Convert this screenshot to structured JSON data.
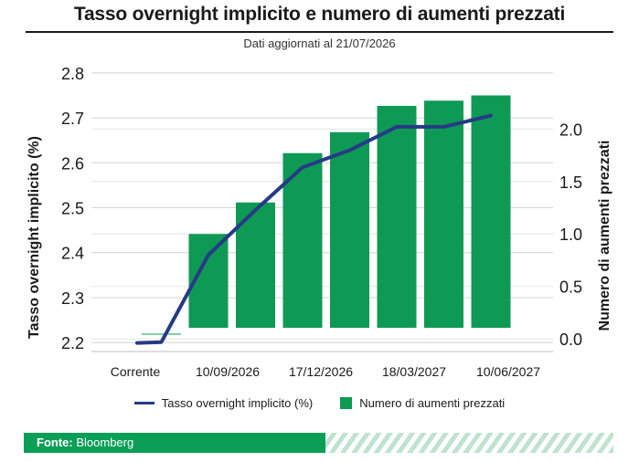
{
  "header": {
    "title": "Tasso overnight implicito e numero di aumenti prezzati",
    "subtitle": "Dati aggiornati al 21/07/2026"
  },
  "legend": {
    "line_label": "Tasso overnight implicito (%)",
    "bar_label": "Numero di aumenti prezzati"
  },
  "footer": {
    "source_label": "Fonte:",
    "source_value": "Bloomberg"
  },
  "colors": {
    "bar": "#0e9a55",
    "line": "#273a85",
    "footer": "#0b9e57"
  },
  "chart_data": {
    "type": "bar",
    "categories": [
      "Corrente",
      "",
      "10/09/2026",
      "",
      "17/12/2026",
      "",
      "18/03/2027",
      "",
      "10/06/2027"
    ],
    "x_tick_labels": [
      "Corrente",
      "10/09/2026",
      "17/12/2026",
      "18/03/2027",
      "10/06/2027"
    ],
    "series": [
      {
        "type": "bar",
        "axis": "right",
        "values": [
          0.0,
          0.05,
          1.0,
          1.3,
          1.77,
          1.97,
          2.22,
          2.27,
          2.32
        ]
      },
      {
        "type": "line",
        "axis": "left",
        "values": [
          2.199,
          2.201,
          2.395,
          2.495,
          2.59,
          2.628,
          2.68,
          2.68,
          2.705
        ]
      }
    ],
    "ylabel": "Tasso overnight implicito (%)",
    "ylabel_right": "Numero di aumenti prezzati",
    "ylim": [
      2.18,
      2.82
    ],
    "yticks": [
      "2.2",
      "2.3",
      "2.4",
      "2.5",
      "2.6",
      "2.7",
      "2.8"
    ],
    "ylim_right": [
      -0.12,
      2.62
    ],
    "yticks_right": [
      "0.0",
      "0.5",
      "1.0",
      "1.5",
      "2.0"
    ],
    "grid": true,
    "legend_position": "bottom"
  }
}
